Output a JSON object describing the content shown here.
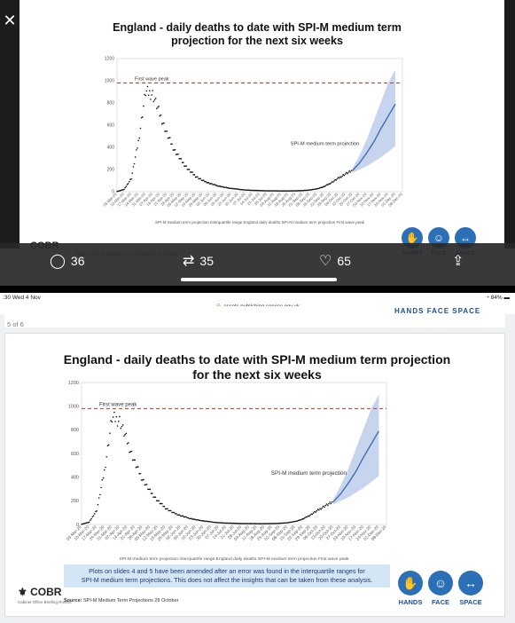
{
  "tweet": {
    "replies": "36",
    "retweets": "35",
    "likes": "65"
  },
  "status_bar": {
    "time": ":30  Wed 4 Nov",
    "battery": "84%"
  },
  "url": "assets.publishing.service.gov.uk",
  "page_count": "5 of 6",
  "slide": {
    "title_line1": "England - daily deaths to date with SPI-M medium term projection",
    "title_line2": "for the next six weeks",
    "title_top_line1": "England - daily deaths to date with SPI-M medium term",
    "title_top_line2": "projection for the next six weeks",
    "notice_line1": "Plots on slides 4 and 5 have been amended after an error was found in the interquartile ranges for",
    "notice_line2": "SPI-M medium term projections. This does not affect the insights that can be taken from these analysis.",
    "source_label": "Source:",
    "source_text": "SPI-M Medium Term Projections 28 October",
    "cobr": "COBR",
    "cobr_sub": "Cabinet Office Briefing Rooms",
    "hands": "HANDS",
    "face": "FACE",
    "space": "SPACE"
  },
  "colors": {
    "projection": "#3a67b0",
    "band": "#b9c9e8",
    "peak_line": "#c0392b",
    "deaths": "#111111"
  },
  "chart_data": {
    "type": "scatter",
    "title": "England - daily deaths to date with SPI-M medium term projection for the next six weeks",
    "ylim": [
      0,
      1200
    ],
    "yticks": [
      0,
      200,
      400,
      600,
      800,
      1000,
      1200
    ],
    "xticks": [
      "03-Mar-20",
      "10-Mar-20",
      "17-Mar-20",
      "24-Mar-20",
      "31-Mar-20",
      "07-Apr-20",
      "14-Apr-20",
      "21-Apr-20",
      "28-Apr-20",
      "05-May-20",
      "12-May-20",
      "19-May-20",
      "26-May-20",
      "02-Jun-20",
      "09-Jun-20",
      "16-Jun-20",
      "23-Jun-20",
      "30-Jun-20",
      "07-Jul-20",
      "14-Jul-20",
      "21-Jul-20",
      "28-Jul-20",
      "04-Aug-20",
      "11-Aug-20",
      "18-Aug-20",
      "25-Aug-20",
      "01-Sep-20",
      "08-Sep-20",
      "15-Sep-20",
      "22-Sep-20",
      "29-Sep-20",
      "06-Oct-20",
      "13-Oct-20",
      "20-Oct-20",
      "27-Oct-20",
      "03-Nov-20",
      "10-Nov-20",
      "17-Nov-20",
      "24-Nov-20",
      "01-Dec-20",
      "08-Dec-20"
    ],
    "first_wave_peak": 980,
    "first_wave_label": "First wave peak",
    "projection_label": "SPI-M medium term projection",
    "deaths_weekly": [
      2,
      20,
      120,
      450,
      900,
      880,
      700,
      520,
      380,
      280,
      200,
      140,
      100,
      75,
      55,
      40,
      30,
      22,
      15,
      12,
      10,
      8,
      8,
      7,
      7,
      8,
      10,
      15,
      25,
      45,
      80,
      120,
      160,
      190
    ],
    "projection_weekly": [
      190,
      260,
      350,
      450,
      570,
      680,
      790
    ],
    "band_low_weekly": [
      170,
      200,
      230,
      270,
      310,
      360,
      410
    ],
    "band_high_weekly": [
      210,
      330,
      470,
      640,
      810,
      980,
      1100
    ],
    "legend": [
      "SPI-M medium term projection interquartile range",
      "England daily deaths",
      "SPI-M medium term projection",
      "First wave peak"
    ]
  }
}
